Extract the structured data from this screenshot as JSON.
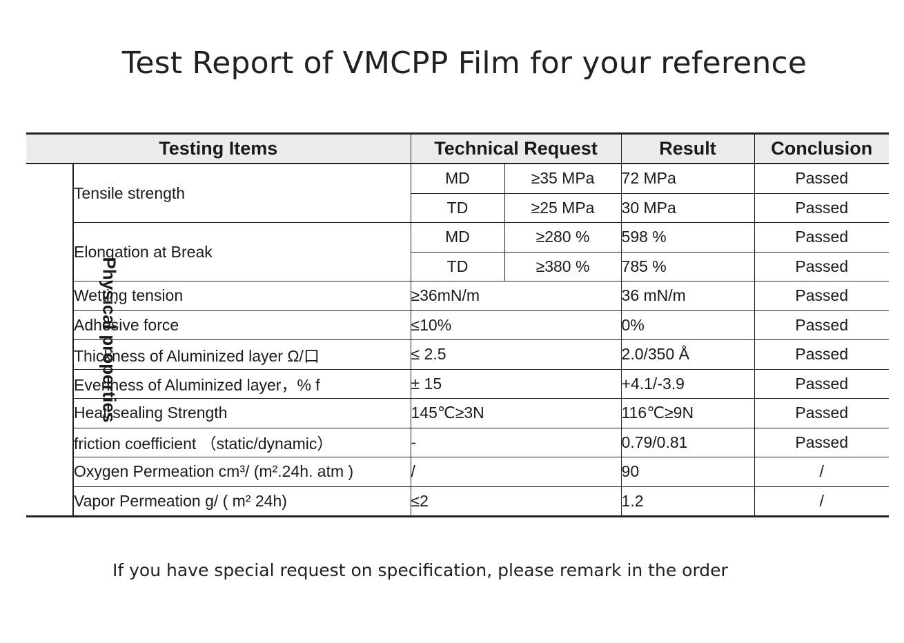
{
  "title": "Test Report of  VMCPP Film for your reference",
  "footnote": "If you have special request on specification, please remark in the order",
  "table": {
    "headers": {
      "items": "Testing Items",
      "request": "Technical Request",
      "result": "Result",
      "conclusion": "Conclusion"
    },
    "category": "Physical properties",
    "tensile": {
      "label": "Tensile strength",
      "md": {
        "dir": "MD",
        "req": "≥35 MPa",
        "result": "72 MPa",
        "conclusion": "Passed"
      },
      "td": {
        "dir": "TD",
        "req": "≥25 MPa",
        "result": "30 MPa",
        "conclusion": "Passed"
      }
    },
    "elongation": {
      "label": "Elongation at Break",
      "md": {
        "dir": "MD",
        "req": "≥280 %",
        "result": "598 %",
        "conclusion": "Passed"
      },
      "td": {
        "dir": "TD",
        "req": "≥380 %",
        "result": "785 %",
        "conclusion": "Passed"
      }
    },
    "rows": [
      {
        "label": "Wetting tension",
        "req": "≥36mN/m",
        "result": "36 mN/m",
        "conclusion": "Passed"
      },
      {
        "label": "Adhesive force",
        "req": "≤10%",
        "result": "0%",
        "conclusion": "Passed"
      },
      {
        "label": "Thickness of Aluminized layer Ω/口",
        "req": "≤ 2.5",
        "result": "2.0/350 Å",
        "conclusion": "Passed"
      },
      {
        "label": "Evenness of Aluminized layer，% f",
        "req": "± 15",
        "result": "+4.1/-3.9",
        "conclusion": "Passed"
      },
      {
        "label": "Heat-sealing Strength",
        "req": "145℃≥3N",
        "result": "116℃≥9N",
        "conclusion": "Passed"
      },
      {
        "label": "friction coefficient （static/dynamic）",
        "req": "-",
        "result": "0.79/0.81",
        "conclusion": "Passed"
      },
      {
        "label": "Oxygen Permeation  cm³/ (m².24h. atm    )",
        "req": "/",
        "result": "90",
        "conclusion": "/"
      },
      {
        "label": "Vapor Permeation   g/ ( m² 24h)",
        "req": "≤2",
        "result": "1.2",
        "conclusion": "/"
      }
    ]
  }
}
